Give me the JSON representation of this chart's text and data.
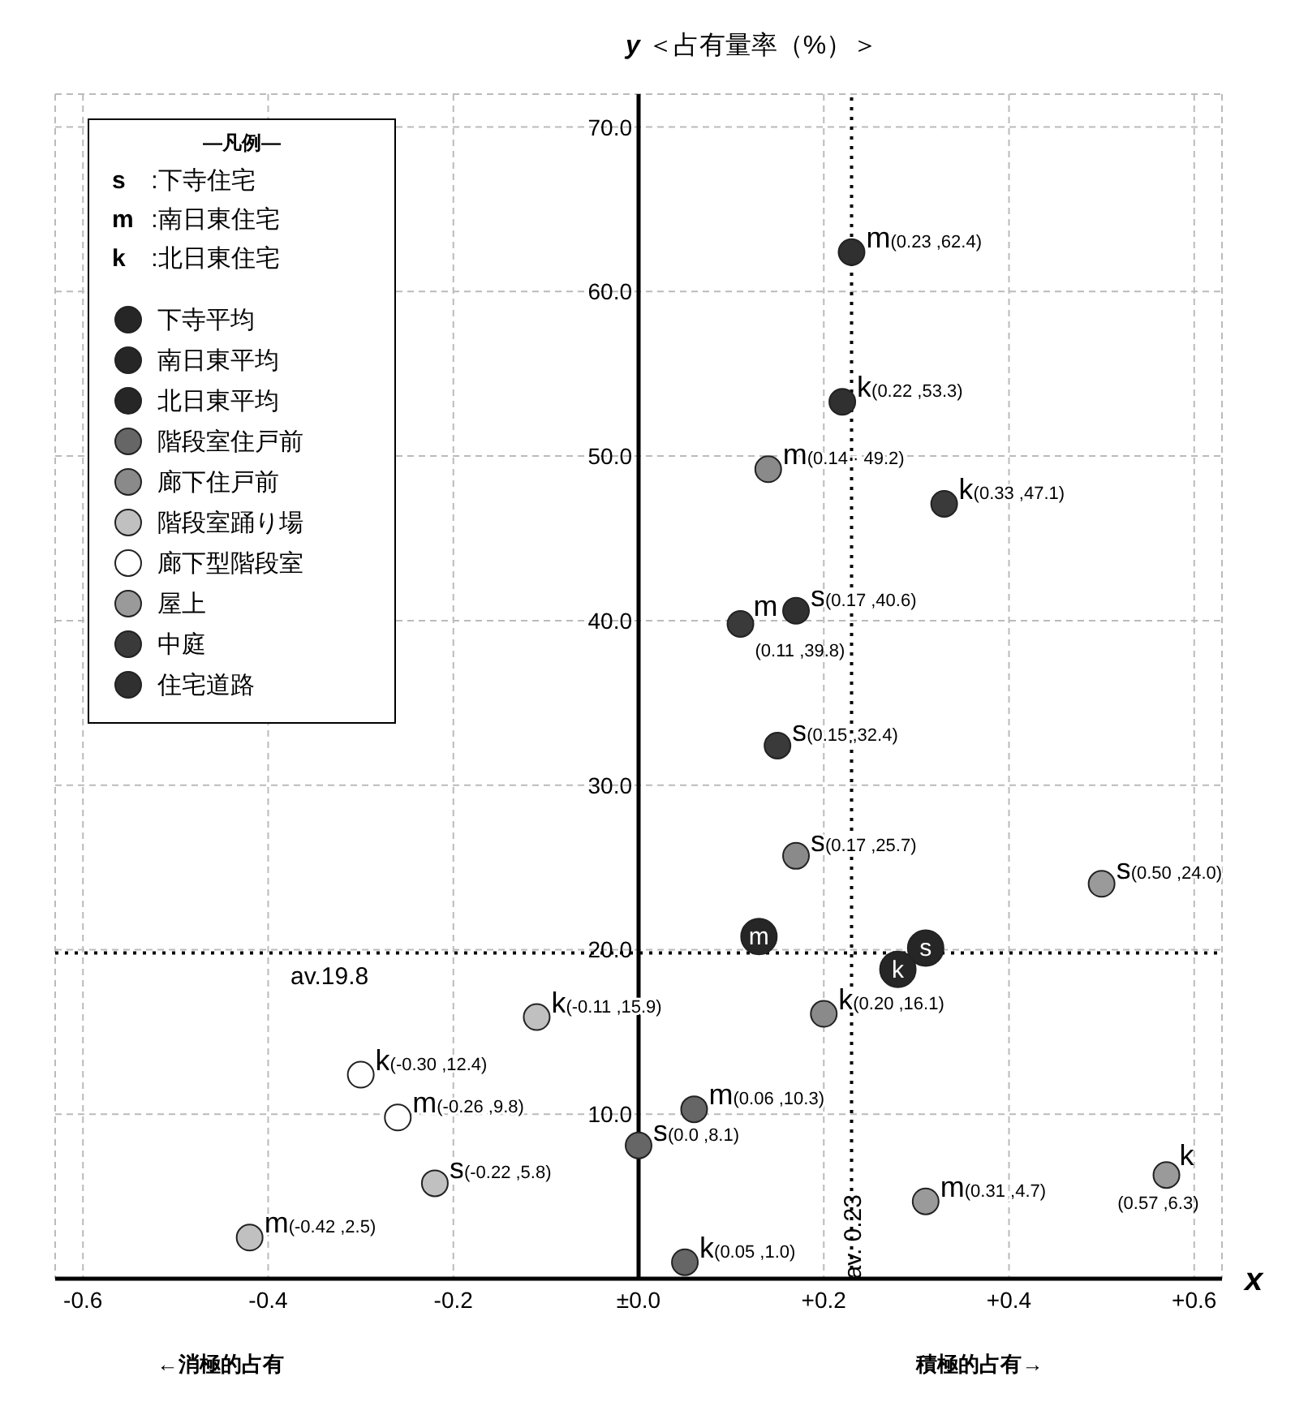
{
  "chart_data": {
    "type": "scatter",
    "ylabel": "y ＜占有量率（%）＞",
    "xlabel": "x",
    "legend_title": "—凡例—",
    "annotations": [
      "s :下寺住宅",
      "m :南日東住宅",
      "k :北日東住宅",
      "←消極的占有",
      "積極的占有→"
    ],
    "xlim": [
      -0.63,
      0.63
    ],
    "ylim": [
      0,
      72
    ],
    "xticks": [
      -0.6,
      -0.4,
      -0.2,
      {
        "value": 0,
        "label": "±0.0"
      },
      {
        "value": 0.2,
        "label": "+0.2"
      },
      {
        "value": 0.4,
        "label": "+0.4"
      },
      {
        "value": 0.6,
        "label": "+0.6"
      }
    ],
    "yticks": [
      {
        "value": 10,
        "label": "10.0"
      },
      {
        "value": 20,
        "label": "20.0"
      },
      {
        "value": 30,
        "label": "30.0"
      },
      {
        "value": 40,
        "label": "40.0"
      },
      {
        "value": 50,
        "label": "50.0"
      },
      {
        "value": 60,
        "label": "60.0"
      },
      {
        "value": 70,
        "label": "70.0"
      }
    ],
    "grid": true,
    "legend": "top left",
    "marker": "circle",
    "ref_lines": [
      {
        "axis": "y",
        "value": 19.8,
        "label": "av.19.8",
        "color": "#000000",
        "line_style": "dotted"
      },
      {
        "axis": "x",
        "value": 0.23,
        "label": "av. 0.23",
        "color": "#000000",
        "line_style": "dotted"
      }
    ],
    "series": [
      {
        "name": "下寺平均",
        "color": "#262626",
        "x": [
          0.31
        ],
        "values": [
          20.1
        ],
        "value_labels": [
          "s"
        ]
      },
      {
        "name": "南日東平均",
        "color": "#262626",
        "x": [
          0.13
        ],
        "values": [
          20.8
        ],
        "value_labels": [
          "m"
        ]
      },
      {
        "name": "北日東平均",
        "color": "#262626",
        "x": [
          0.28
        ],
        "values": [
          18.8
        ],
        "value_labels": [
          "k"
        ]
      },
      {
        "name": "階段室住戸前",
        "color": "#666666",
        "x": [
          0.06,
          0.0,
          0.05
        ],
        "values": [
          10.3,
          8.1,
          1.0
        ],
        "value_labels": [
          "m(0.06 ,10.3)",
          "s(0.0 ,8.1)",
          "k(0.05 ,1.0)"
        ]
      },
      {
        "name": "廊下住戸前",
        "color": "#8a8a8a",
        "x": [
          0.14,
          0.17,
          0.2
        ],
        "values": [
          49.2,
          25.7,
          16.1
        ],
        "value_labels": [
          "m(0.14 · 49.2)",
          "s(0.17 ,25.7)",
          "k(0.20 ,16.1)"
        ]
      },
      {
        "name": "階段室踊り場",
        "color": "#c0c0c0",
        "x": [
          -0.11,
          -0.22,
          -0.42
        ],
        "values": [
          15.9,
          5.8,
          2.5
        ],
        "value_labels": [
          "k(-0.11 ,15.9)",
          "s(-0.22 ,5.8)",
          "m(-0.42 ,2.5)"
        ]
      },
      {
        "name": "廊下型階段室",
        "color": "#ffffff",
        "x": [
          -0.3,
          -0.26
        ],
        "values": [
          12.4,
          9.8
        ],
        "value_labels": [
          "k(-0.30 ,12.4)",
          "m(-0.26 ,9.8)"
        ]
      },
      {
        "name": "屋上",
        "color": "#9a9a9a",
        "x": [
          0.5,
          0.31,
          0.57
        ],
        "values": [
          24.0,
          4.7,
          6.3
        ],
        "value_labels": [
          "s(0.50 ,24.0)",
          "m(0.31 ,4.7)",
          "k(0.57 ,6.3)"
        ]
      },
      {
        "name": "中庭",
        "color": "#3a3a3a",
        "x": [
          0.33,
          0.11,
          0.15
        ],
        "values": [
          47.1,
          39.8,
          32.4
        ],
        "value_labels": [
          "k(0.33 ,47.1)",
          "m(0.11 ,39.8)",
          "s(0.15 ,32.4)"
        ]
      },
      {
        "name": "住宅道路",
        "color": "#303030",
        "x": [
          0.23,
          0.22,
          0.17
        ],
        "values": [
          62.4,
          53.3,
          40.6
        ],
        "value_labels": [
          "m(0.23 ,62.4)",
          "k(0.22 ,53.3)",
          "s(0.17 ,40.6)"
        ]
      }
    ]
  }
}
